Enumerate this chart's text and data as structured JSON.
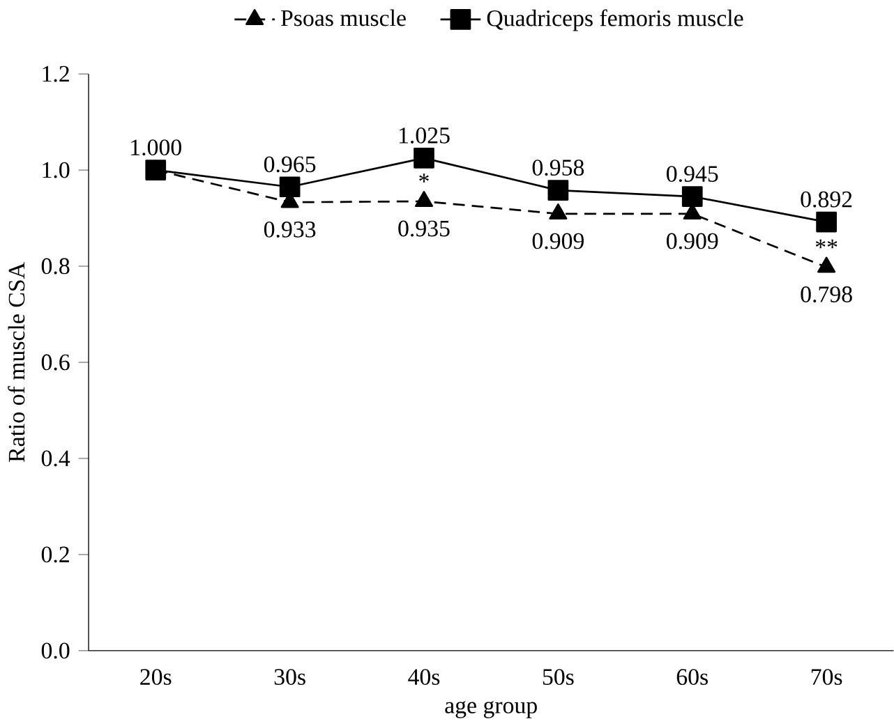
{
  "chart_data": {
    "type": "line",
    "xlabel": "age group",
    "ylabel": "Ratio of muscle CSA",
    "categories": [
      "20s",
      "30s",
      "40s",
      "50s",
      "60s",
      "70s"
    ],
    "series": [
      {
        "name": "Psoas muscle",
        "color": "#000000",
        "marker": "triangle",
        "line_style": "dashed",
        "values": [
          1.0,
          0.933,
          0.935,
          0.909,
          0.909,
          0.798
        ],
        "value_labels": [
          null,
          "0.933",
          "0.935",
          "0.909",
          "0.909",
          "0.798"
        ]
      },
      {
        "name": "Quadriceps femoris muscle",
        "color": "#000000",
        "marker": "square",
        "line_style": "solid",
        "values": [
          1.0,
          0.965,
          1.025,
          0.958,
          0.945,
          0.892
        ],
        "value_labels": [
          "1.000",
          "0.965",
          "1.025",
          "0.958",
          "0.945",
          "0.892"
        ]
      }
    ],
    "ylim": [
      0,
      1.2
    ],
    "yticks": [
      {
        "value": 0,
        "label": "0.0"
      },
      {
        "value": 0.2,
        "label": "0.2"
      },
      {
        "value": 0.4,
        "label": "0.4"
      },
      {
        "value": 0.6,
        "label": "0.6"
      },
      {
        "value": 0.8,
        "label": "0.8"
      },
      {
        "value": 1.0,
        "label": "1.0"
      },
      {
        "value": 1.2,
        "label": "1.2"
      }
    ],
    "annotations": [
      {
        "text": "*",
        "x": "40s",
        "y": 0.935
      },
      {
        "text": "**",
        "x": "70s",
        "y": 0.798
      }
    ],
    "legend": "top",
    "grid": false
  }
}
